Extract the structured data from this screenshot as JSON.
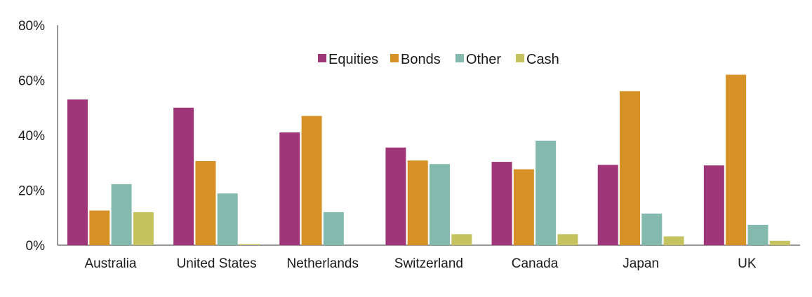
{
  "chart_data": {
    "type": "bar",
    "categories": [
      "Australia",
      "United States",
      "Netherlands",
      "Switzerland",
      "Canada",
      "Japan",
      "UK"
    ],
    "series": [
      {
        "name": "Equities",
        "color": "#a0367a",
        "values": [
          53,
          50,
          41,
          35.5,
          30.3,
          29.2,
          29
        ]
      },
      {
        "name": "Bonds",
        "color": "#d79227",
        "values": [
          12.6,
          30.6,
          47,
          30.8,
          27.6,
          56,
          62
        ]
      },
      {
        "name": "Other",
        "color": "#84b9ae",
        "values": [
          22.2,
          18.8,
          12,
          29.5,
          38,
          11.5,
          7.4
        ]
      },
      {
        "name": "Cash",
        "color": "#c4c35f",
        "values": [
          12,
          0.4,
          0,
          4,
          4,
          3.2,
          1.6
        ]
      }
    ],
    "ylim": [
      0,
      80
    ],
    "yticks": [
      "0%",
      "20%",
      "40%",
      "60%",
      "80%"
    ],
    "ytick_values": [
      0,
      20,
      40,
      60,
      80
    ],
    "grid": false,
    "legend_position": "top-center"
  }
}
